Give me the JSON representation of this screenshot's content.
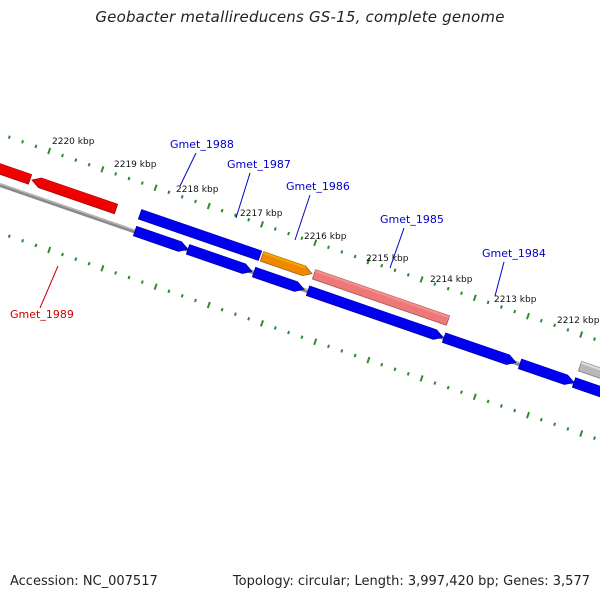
{
  "title": "Geobacter metallireducens GS-15, complete genome",
  "footer": {
    "accession": "Accession: NC_007517",
    "summary": "Topology: circular; Length: 3,997,420 bp; Genes: 3,577"
  },
  "colors": {
    "backbone": "#8a8a8a",
    "tick_dots": "#2e8b2e",
    "cds": "#0000ee",
    "cds_red": "#ee0000",
    "orange": "#ee8800",
    "pink": "#ee7777",
    "grey": "#b8b8b8",
    "label_blue": "#0000cc",
    "label_red": "#cc0000"
  },
  "scale": {
    "unit": "kbp",
    "ticks": [
      {
        "label": "2220 kbp"
      },
      {
        "label": "2219 kbp"
      },
      {
        "label": "2218 kbp"
      },
      {
        "label": "2217 kbp"
      },
      {
        "label": "2216 kbp"
      },
      {
        "label": "2215 kbp"
      },
      {
        "label": "2214 kbp"
      },
      {
        "label": "2213 kbp"
      },
      {
        "label": "2212 kbp"
      }
    ]
  },
  "genes": [
    {
      "label": "Gmet_1989",
      "color": "cds_red"
    },
    {
      "label": "Gmet_1988",
      "color": "cds"
    },
    {
      "label": "Gmet_1987",
      "color": "orange"
    },
    {
      "label": "Gmet_1986",
      "color": "cds"
    },
    {
      "label": "Gmet_1985",
      "color": "pink"
    },
    {
      "label": "Gmet_1984",
      "color": "cds"
    }
  ]
}
